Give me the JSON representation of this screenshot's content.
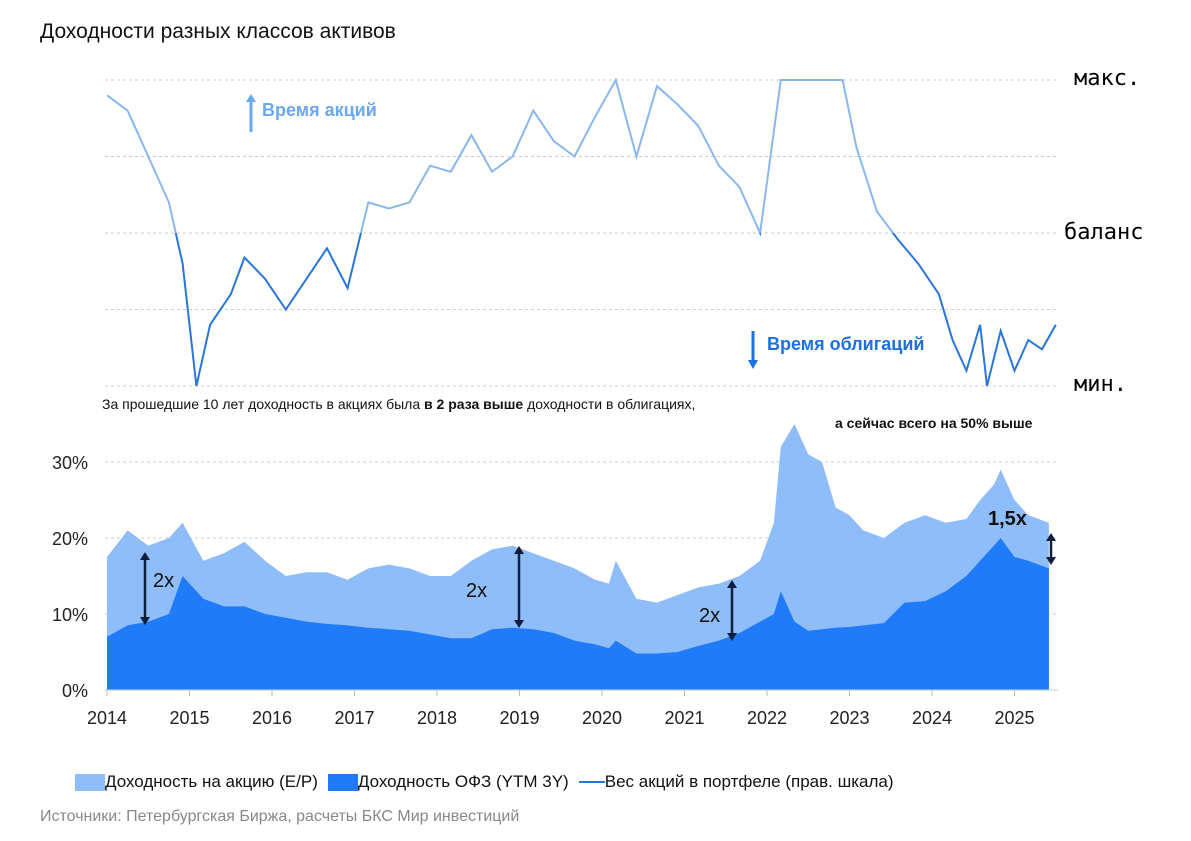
{
  "title": "Доходности разных классов активов",
  "annotations": {
    "stocks_time": "Время акций",
    "bonds_time": "Время облигаций",
    "note_line1_a": "За прошедшие 10 лет доходность в акциях была ",
    "note_line1_b": "в 2 раза выше",
    "note_line1_c": " доходности в облигациях,",
    "note_line2": "а сейчас всего на 50% выше",
    "ratio_2014": "2x",
    "ratio_2019": "2x",
    "ratio_2021": "2x",
    "ratio_2025": "1,5x"
  },
  "source": "Источники: Петербургская Биржа, расчеты БКС Мир инвестиций",
  "colors": {
    "ep": "#8fbdf9",
    "ofz": "#1f7bf8",
    "weight_high": "#8ab8ee",
    "weight_low": "#2a76d8",
    "arrow": "#0f1e3c"
  },
  "chart_data": [
    {
      "type": "line",
      "title": "",
      "right_axis_labels": [
        "макс.",
        "баланс",
        "мин."
      ],
      "ylim": [
        0,
        100
      ],
      "series": [
        {
          "name": "Вес акций в портфеле (прав. шкала)",
          "x": [
            "2014-01",
            "2014-04",
            "2014-07",
            "2014-10",
            "2014-12",
            "2015-02",
            "2015-04",
            "2015-07",
            "2015-09",
            "2015-12",
            "2016-03",
            "2016-06",
            "2016-09",
            "2016-12",
            "2017-03",
            "2017-06",
            "2017-09",
            "2017-12",
            "2018-03",
            "2018-06",
            "2018-09",
            "2018-12",
            "2019-03",
            "2019-06",
            "2019-09",
            "2019-12",
            "2020-03",
            "2020-06",
            "2020-09",
            "2020-12",
            "2021-03",
            "2021-06",
            "2021-09",
            "2021-12",
            "2022-03",
            "2022-12",
            "2023-02",
            "2023-05",
            "2023-08",
            "2023-11",
            "2024-02",
            "2024-04",
            "2024-06",
            "2024-08",
            "2024-09",
            "2024-11",
            "2025-01",
            "2025-03",
            "2025-05",
            "2025-07"
          ],
          "values": [
            95,
            90,
            75,
            60,
            40,
            0,
            20,
            30,
            42,
            35,
            25,
            35,
            45,
            32,
            60,
            58,
            60,
            72,
            70,
            82,
            70,
            75,
            90,
            80,
            75,
            88,
            100,
            75,
            98,
            92,
            85,
            72,
            65,
            50,
            100,
            100,
            78,
            57,
            48,
            40,
            30,
            15,
            5,
            20,
            0,
            18,
            5,
            15,
            12,
            20
          ]
        }
      ]
    },
    {
      "type": "area",
      "title": "",
      "xlabel": "",
      "ylabel": "",
      "ylim": [
        0,
        35
      ],
      "yticks": [
        "0%",
        "10%",
        "20%",
        "30%"
      ],
      "xticks": [
        "2014",
        "2015",
        "2016",
        "2017",
        "2018",
        "2019",
        "2020",
        "2021",
        "2022",
        "2023",
        "2024",
        "2025"
      ],
      "x": [
        "2014-01",
        "2014-04",
        "2014-07",
        "2014-10",
        "2014-12",
        "2015-03",
        "2015-06",
        "2015-09",
        "2015-12",
        "2016-03",
        "2016-06",
        "2016-09",
        "2016-12",
        "2017-03",
        "2017-06",
        "2017-09",
        "2017-12",
        "2018-03",
        "2018-06",
        "2018-09",
        "2018-12",
        "2019-03",
        "2019-06",
        "2019-09",
        "2019-12",
        "2020-02",
        "2020-03",
        "2020-06",
        "2020-09",
        "2020-12",
        "2021-03",
        "2021-06",
        "2021-09",
        "2021-12",
        "2022-02",
        "2022-03",
        "2022-05",
        "2022-07",
        "2022-09",
        "2022-11",
        "2023-01",
        "2023-03",
        "2023-06",
        "2023-09",
        "2023-12",
        "2024-03",
        "2024-06",
        "2024-08",
        "2024-10",
        "2024-11",
        "2025-01",
        "2025-03",
        "2025-06"
      ],
      "series": [
        {
          "name": "Доходность на акцию (E/P)",
          "values": [
            17.5,
            21,
            19,
            20,
            22,
            17,
            18,
            19.5,
            17,
            15,
            15.5,
            15.5,
            14.5,
            16,
            16.5,
            16,
            15,
            15,
            17,
            18.5,
            19,
            18,
            17,
            16,
            14.5,
            14,
            17,
            12,
            11.5,
            12.5,
            13.5,
            14,
            15,
            17,
            22,
            32,
            35,
            31,
            30,
            24,
            23,
            21,
            20,
            22,
            23,
            22,
            22.5,
            25,
            27,
            29,
            25,
            23,
            22
          ]
        },
        {
          "name": "Доходность ОФЗ (YTM 3Y)",
          "values": [
            7,
            8.5,
            9,
            10,
            15,
            12,
            11,
            11,
            10,
            9.5,
            9,
            8.7,
            8.5,
            8.2,
            8,
            7.8,
            7.3,
            6.8,
            6.8,
            8,
            8.2,
            8,
            7.5,
            6.5,
            6,
            5.5,
            6.5,
            4.8,
            4.8,
            5,
            5.8,
            6.5,
            7.5,
            9,
            10,
            13,
            9,
            7.8,
            8,
            8.2,
            8.3,
            8.5,
            8.8,
            11.5,
            11.7,
            13,
            15,
            17,
            19,
            20,
            17.5,
            17,
            16
          ]
        }
      ],
      "legend": [
        "Доходность на акцию (E/P)",
        "Доходность ОФЗ (YTM 3Y)",
        "Вес акций в портфеле (прав. шкала)"
      ],
      "legend_position": "bottom",
      "grid": true
    }
  ]
}
